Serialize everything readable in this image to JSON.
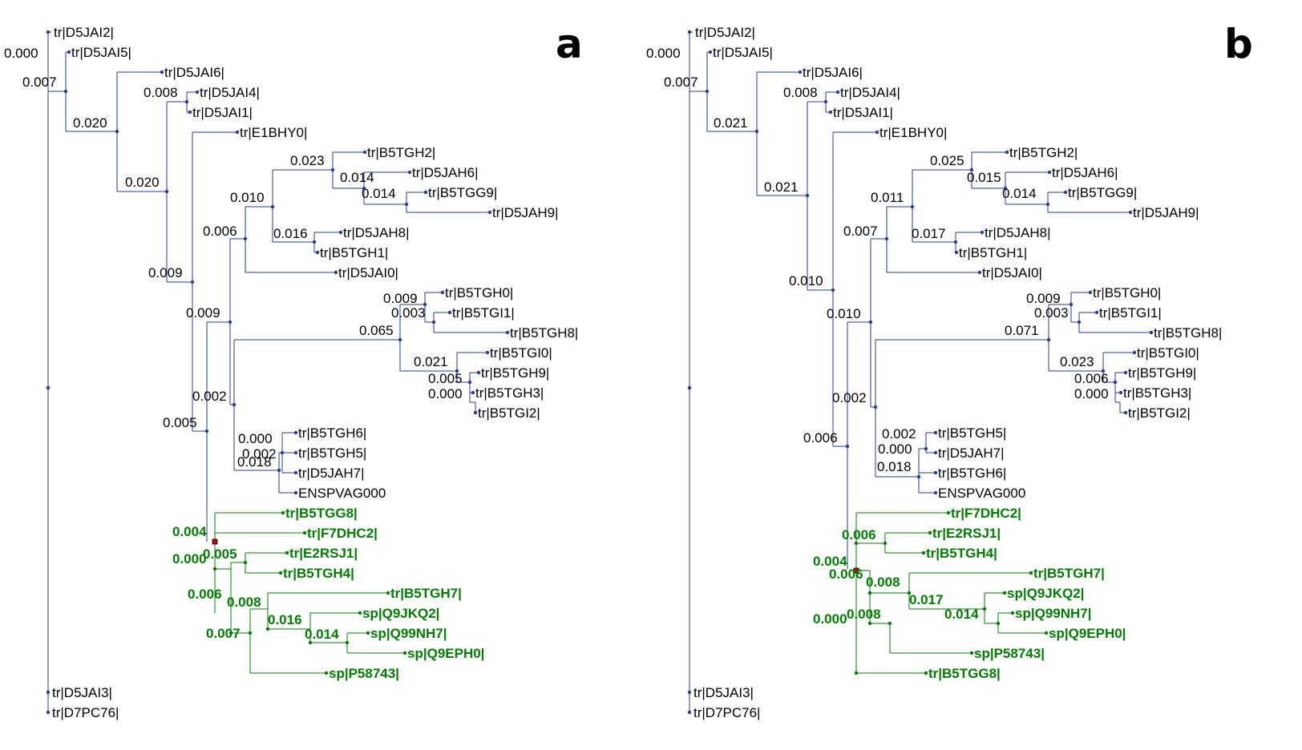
{
  "colors": {
    "blue": "#2b3a9e",
    "green": "#008000",
    "black": "#000000",
    "selected": "#cc0000"
  },
  "panels": [
    {
      "letter": "a",
      "leaves": [
        {
          "label": "tr|D5JAI2|",
          "green": false
        },
        {
          "label": "tr|D5JAI5|",
          "green": false
        },
        {
          "label": "tr|D5JAI6|",
          "green": false
        },
        {
          "label": "tr|D5JAI4|",
          "green": false
        },
        {
          "label": "tr|D5JAI1|",
          "green": false
        },
        {
          "label": "tr|E1BHY0|",
          "green": false
        },
        {
          "label": "tr|B5TGH2|",
          "green": false
        },
        {
          "label": "tr|D5JAH6|",
          "green": false
        },
        {
          "label": "tr|B5TGG9|",
          "green": false
        },
        {
          "label": "tr|D5JAH9|",
          "green": false
        },
        {
          "label": "tr|D5JAH8|",
          "green": false
        },
        {
          "label": "tr|B5TGH1|",
          "green": false
        },
        {
          "label": "tr|D5JAI0|",
          "green": false
        },
        {
          "label": "tr|B5TGH0|",
          "green": false
        },
        {
          "label": "tr|B5TGI1|",
          "green": false
        },
        {
          "label": "tr|B5TGH8|",
          "green": false
        },
        {
          "label": "tr|B5TGI0|",
          "green": false
        },
        {
          "label": "tr|B5TGH9|",
          "green": false
        },
        {
          "label": "tr|B5TGH3|",
          "green": false
        },
        {
          "label": "tr|B5TGI2|",
          "green": false
        },
        {
          "label": "tr|B5TGH6|",
          "green": false
        },
        {
          "label": "tr|B5TGH5|",
          "green": false
        },
        {
          "label": "tr|D5JAH7|",
          "green": false
        },
        {
          "label": "ENSPVAG000",
          "green": false
        },
        {
          "label": "tr|B5TGG8|",
          "green": true
        },
        {
          "label": "tr|F7DHC2|",
          "green": true
        },
        {
          "label": "tr|E2RSJ1|",
          "green": true
        },
        {
          "label": "tr|B5TGH4|",
          "green": true
        },
        {
          "label": "tr|B5TGH7|",
          "green": true
        },
        {
          "label": "sp|Q9JKQ2|",
          "green": true
        },
        {
          "label": "sp|Q99NH7|",
          "green": true
        },
        {
          "label": "sp|Q9EPH0|",
          "green": true
        },
        {
          "label": "sp|P58743|",
          "green": true
        },
        {
          "label": "tr|D5JAI3|",
          "green": false
        },
        {
          "label": "tr|D7PC76|",
          "green": false
        }
      ],
      "branch_labels": [
        {
          "text": "0.000",
          "green": false
        },
        {
          "text": "0.007",
          "green": false
        },
        {
          "text": "0.020",
          "green": false
        },
        {
          "text": "0.008",
          "green": false
        },
        {
          "text": "0.020",
          "green": false
        },
        {
          "text": "0.023",
          "green": false
        },
        {
          "text": "0.014",
          "green": false
        },
        {
          "text": "0.014",
          "green": false
        },
        {
          "text": "0.010",
          "green": false
        },
        {
          "text": "0.006",
          "green": false
        },
        {
          "text": "0.016",
          "green": false
        },
        {
          "text": "0.009",
          "green": false
        },
        {
          "text": "0.009",
          "green": false
        },
        {
          "text": "0.009",
          "green": false
        },
        {
          "text": "0.003",
          "green": false
        },
        {
          "text": "0.065",
          "green": false
        },
        {
          "text": "0.021",
          "green": false
        },
        {
          "text": "0.005",
          "green": false
        },
        {
          "text": "0.000",
          "green": false
        },
        {
          "text": "0.002",
          "green": false
        },
        {
          "text": "0.005",
          "green": false
        },
        {
          "text": "0.000",
          "green": false
        },
        {
          "text": "0.002",
          "green": false
        },
        {
          "text": "0.018",
          "green": false
        },
        {
          "text": "0.004",
          "green": true
        },
        {
          "text": "0.005",
          "green": true
        },
        {
          "text": "0.000",
          "green": true
        },
        {
          "text": "0.006",
          "green": true
        },
        {
          "text": "0.008",
          "green": true
        },
        {
          "text": "0.016",
          "green": true
        },
        {
          "text": "0.007",
          "green": true
        },
        {
          "text": "0.014",
          "green": true
        }
      ]
    },
    {
      "letter": "b",
      "leaves": [
        {
          "label": "tr|D5JAI2|",
          "green": false
        },
        {
          "label": "tr|D5JAI5|",
          "green": false
        },
        {
          "label": "tr|D5JAI6|",
          "green": false
        },
        {
          "label": "tr|D5JAI4|",
          "green": false
        },
        {
          "label": "tr|D5JAI1|",
          "green": false
        },
        {
          "label": "tr|E1BHY0|",
          "green": false
        },
        {
          "label": "tr|B5TGH2|",
          "green": false
        },
        {
          "label": "tr|D5JAH6|",
          "green": false
        },
        {
          "label": "tr|B5TGG9|",
          "green": false
        },
        {
          "label": "tr|D5JAH9|",
          "green": false
        },
        {
          "label": "tr|D5JAH8|",
          "green": false
        },
        {
          "label": "tr|B5TGH1|",
          "green": false
        },
        {
          "label": "tr|D5JAI0|",
          "green": false
        },
        {
          "label": "tr|B5TGH0|",
          "green": false
        },
        {
          "label": "tr|B5TGI1|",
          "green": false
        },
        {
          "label": "tr|B5TGH8|",
          "green": false
        },
        {
          "label": "tr|B5TGI0|",
          "green": false
        },
        {
          "label": "tr|B5TGH9|",
          "green": false
        },
        {
          "label": "tr|B5TGH3|",
          "green": false
        },
        {
          "label": "tr|B5TGI2|",
          "green": false
        },
        {
          "label": "tr|B5TGH5|",
          "green": false
        },
        {
          "label": "tr|D5JAH7|",
          "green": false
        },
        {
          "label": "tr|B5TGH6|",
          "green": false
        },
        {
          "label": "ENSPVAG000",
          "green": false
        },
        {
          "label": "tr|F7DHC2|",
          "green": true
        },
        {
          "label": "tr|E2RSJ1|",
          "green": true
        },
        {
          "label": "tr|B5TGH4|",
          "green": true
        },
        {
          "label": "tr|B5TGH7|",
          "green": true
        },
        {
          "label": "sp|Q9JKQ2|",
          "green": true
        },
        {
          "label": "sp|Q99NH7|",
          "green": true
        },
        {
          "label": "sp|Q9EPH0|",
          "green": true
        },
        {
          "label": "sp|P58743|",
          "green": true
        },
        {
          "label": "tr|B5TGG8|",
          "green": true
        },
        {
          "label": "tr|D5JAI3|",
          "green": false
        },
        {
          "label": "tr|D7PC76|",
          "green": false
        }
      ],
      "branch_labels": [
        {
          "text": "0.000",
          "green": false
        },
        {
          "text": "0.007",
          "green": false
        },
        {
          "text": "0.021",
          "green": false
        },
        {
          "text": "0.008",
          "green": false
        },
        {
          "text": "0.021",
          "green": false
        },
        {
          "text": "0.025",
          "green": false
        },
        {
          "text": "0.015",
          "green": false
        },
        {
          "text": "0.014",
          "green": false
        },
        {
          "text": "0.011",
          "green": false
        },
        {
          "text": "0.007",
          "green": false
        },
        {
          "text": "0.017",
          "green": false
        },
        {
          "text": "0.010",
          "green": false
        },
        {
          "text": "0.010",
          "green": false
        },
        {
          "text": "0.009",
          "green": false
        },
        {
          "text": "0.003",
          "green": false
        },
        {
          "text": "0.071",
          "green": false
        },
        {
          "text": "0.023",
          "green": false
        },
        {
          "text": "0.006",
          "green": false
        },
        {
          "text": "0.000",
          "green": false
        },
        {
          "text": "0.002",
          "green": false
        },
        {
          "text": "0.006",
          "green": false
        },
        {
          "text": "0.002",
          "green": false
        },
        {
          "text": "0.000",
          "green": false
        },
        {
          "text": "0.018",
          "green": false
        },
        {
          "text": "0.006",
          "green": true
        },
        {
          "text": "0.004",
          "green": true
        },
        {
          "text": "0.006",
          "green": true
        },
        {
          "text": "0.008",
          "green": true
        },
        {
          "text": "0.017",
          "green": true
        },
        {
          "text": "0.000",
          "green": true
        },
        {
          "text": "0.008",
          "green": true
        },
        {
          "text": "0.014",
          "green": true
        }
      ]
    }
  ]
}
